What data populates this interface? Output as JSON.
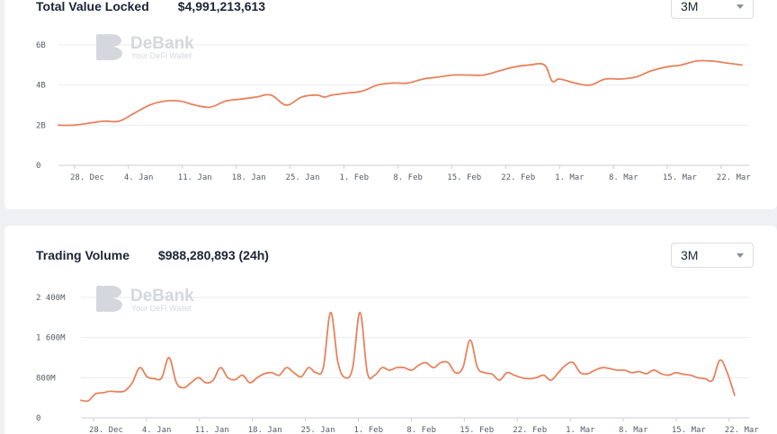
{
  "tvl_card": {
    "title": "Total Value Locked",
    "value": "$4,991,213,613",
    "range": "3M"
  },
  "volume_card": {
    "title": "Trading Volume",
    "value": "$988,280,893 (24h)",
    "range": "3M"
  },
  "watermark": {
    "brand": "DeBank",
    "tagline": "Your DeFi Wallet"
  },
  "colors": {
    "line": "#e8825c",
    "grid": "#e9ebef",
    "watermark": "#d4d8de"
  },
  "icons": [
    "debank-logo-icon",
    "chevron-down-icon"
  ],
  "chart_data": [
    {
      "type": "line",
      "title": "Total Value Locked",
      "xlabel": "",
      "ylabel": "",
      "grid": true,
      "legend": "none",
      "x_tick_labels": [
        "28. Dec",
        "4. Jan",
        "11. Jan",
        "18. Jan",
        "25. Jan",
        "1. Feb",
        "8. Feb",
        "15. Feb",
        "22. Feb",
        "1. Mar",
        "8. Mar",
        "15. Mar",
        "22. Mar"
      ],
      "y_ticks": [
        0,
        2,
        4,
        6
      ],
      "y_tick_labels": [
        "0",
        "2B",
        "4B",
        "6B"
      ],
      "ylim": [
        0,
        6.6
      ],
      "xlim": [
        0,
        90
      ],
      "y_unit": "billion USD",
      "series": [
        {
          "x": [
            0,
            2,
            4,
            6,
            8,
            10,
            12,
            14,
            16,
            18,
            20,
            22,
            24,
            26,
            28,
            30,
            32,
            34,
            35,
            36,
            38,
            40,
            42,
            44,
            46,
            48,
            50,
            52,
            54,
            56,
            58,
            60,
            62,
            64,
            65,
            66,
            68,
            70,
            72,
            74,
            76,
            78,
            80,
            82,
            84,
            86,
            88,
            90
          ],
          "y": [
            2.0,
            2.0,
            2.1,
            2.2,
            2.2,
            2.6,
            3.0,
            3.2,
            3.2,
            3.0,
            2.9,
            3.2,
            3.3,
            3.4,
            3.5,
            3.0,
            3.4,
            3.5,
            3.4,
            3.5,
            3.6,
            3.7,
            4.0,
            4.1,
            4.1,
            4.3,
            4.4,
            4.5,
            4.5,
            4.5,
            4.7,
            4.9,
            5.0,
            5.0,
            4.2,
            4.3,
            4.1,
            4.0,
            4.3,
            4.3,
            4.4,
            4.7,
            4.9,
            5.0,
            5.2,
            5.2,
            5.1,
            5.0
          ]
        }
      ]
    },
    {
      "type": "line",
      "title": "Trading Volume",
      "xlabel": "",
      "ylabel": "",
      "grid": true,
      "legend": "none",
      "x_tick_labels": [
        "28. Dec",
        "4. Jan",
        "11. Jan",
        "18. Jan",
        "25. Jan",
        "1. Feb",
        "8. Feb",
        "15. Feb",
        "22. Feb",
        "1. Mar",
        "8. Mar",
        "15. Mar",
        "22. Mar"
      ],
      "y_ticks": [
        0,
        800,
        1600,
        2400
      ],
      "y_tick_labels": [
        "0",
        "800M",
        "1 600M",
        "2 400M"
      ],
      "ylim": [
        0,
        2500
      ],
      "xlim": [
        0,
        90
      ],
      "y_unit": "million USD",
      "series": [
        {
          "x": [
            0,
            1,
            2,
            3,
            4,
            5,
            6,
            7,
            8,
            9,
            10,
            11,
            12,
            13,
            14,
            15,
            16,
            17,
            18,
            19,
            20,
            21,
            22,
            23,
            24,
            25,
            26,
            27,
            28,
            29,
            30,
            31,
            32,
            33,
            34,
            35,
            36,
            37,
            38,
            39,
            40,
            41,
            42,
            43,
            44,
            45,
            46,
            47,
            48,
            49,
            50,
            51,
            52,
            53,
            54,
            55,
            56,
            57,
            58,
            59,
            60,
            61,
            62,
            63,
            64,
            65,
            66,
            67,
            68,
            69,
            70,
            71,
            72,
            73,
            74,
            75,
            76,
            77,
            78,
            79,
            80,
            81,
            82,
            83,
            84,
            85,
            86,
            87,
            88,
            89
          ],
          "y": [
            350,
            340,
            480,
            500,
            530,
            520,
            540,
            700,
            1000,
            820,
            780,
            800,
            1200,
            700,
            600,
            700,
            800,
            700,
            750,
            1000,
            800,
            760,
            850,
            700,
            800,
            880,
            900,
            850,
            1000,
            900,
            820,
            1000,
            900,
            1000,
            2100,
            1100,
            800,
            1000,
            2100,
            900,
            850,
            1000,
            950,
            1000,
            1000,
            950,
            1050,
            1100,
            1000,
            1100,
            1100,
            900,
            1000,
            1550,
            1000,
            900,
            870,
            750,
            900,
            850,
            800,
            780,
            800,
            850,
            750,
            900,
            1050,
            1100,
            900,
            880,
            950,
            1000,
            980,
            950,
            950,
            900,
            920,
            880,
            950,
            880,
            850,
            900,
            870,
            850,
            800,
            780,
            750,
            1150,
            900,
            450
          ]
        }
      ]
    }
  ]
}
